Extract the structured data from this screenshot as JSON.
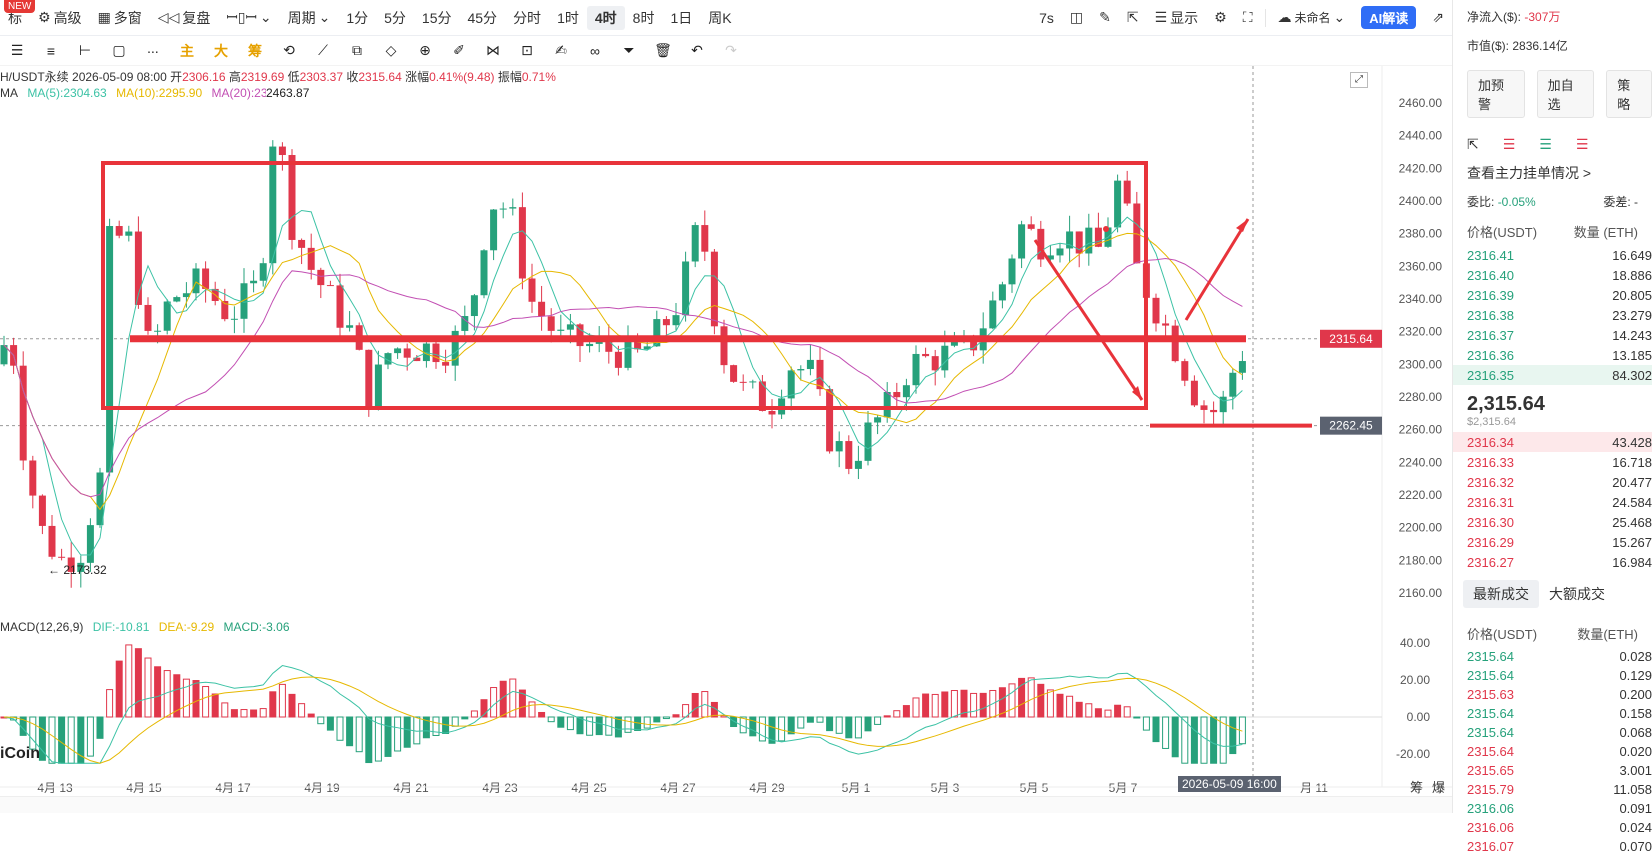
{
  "topbar": {
    "new_badge": "NEW",
    "items": [
      "标",
      "高级",
      "多窗",
      "复盘",
      "",
      "周期"
    ],
    "periods": [
      "1分",
      "5分",
      "15分",
      "45分",
      "分时",
      "1时",
      "4时",
      "8时",
      "1日",
      "周K"
    ],
    "active_period": "4时",
    "refresh": "7s",
    "display_label": "显示",
    "unnamed": "未命名",
    "ai_label": "AI解读"
  },
  "toolbar2": {
    "tool_labels": [
      "主",
      "大",
      "筹"
    ]
  },
  "chart": {
    "info": {
      "pair": "H/USDT永续",
      "date": "2026-05-09 08:00",
      "open_label": "开",
      "open": "2306.16",
      "high_label": "高",
      "high": "2319.69",
      "low_label": "低",
      "low": "2303.37",
      "close_label": "收",
      "close": "2315.64",
      "change_label": "涨幅",
      "change": "0.41%(9.48)",
      "amp_label": "振幅",
      "amp": "0.71%"
    },
    "ma": {
      "label": "MA",
      "ma5": "MA(5):2304.63",
      "ma10": "MA(10):2295.90",
      "ma20": "MA(20):2326.05"
    },
    "high_marker": "2463.87",
    "low_marker": "← 2173.32",
    "macd": {
      "label": "MACD(12,26,9)",
      "dif": "DIF:-10.81",
      "dea": "DEA:-9.29",
      "macd": "MACD:-3.06"
    },
    "watermark": "iCoin",
    "price_axis": [
      "2460.00",
      "2440.00",
      "2420.00",
      "2400.00",
      "2380.00",
      "2360.00",
      "2340.00",
      "2320.00",
      "2300.00",
      "2280.00",
      "2260.00",
      "2240.00",
      "2220.00",
      "2200.00",
      "2180.00",
      "2160.00"
    ],
    "macd_axis": [
      "40.00",
      "20.00",
      "0.00",
      "-20.00"
    ],
    "current_price_tag": "2315.64",
    "support_tag": "2262.45",
    "date_axis": [
      "4月 13",
      "4月 15",
      "4月 17",
      "4月 19",
      "4月 21",
      "4月 23",
      "4月 25",
      "4月 27",
      "4月 29",
      "5月 1",
      "5月 3",
      "5月 5",
      "5月 7",
      "月 11"
    ],
    "crosshair_date": "2026-05-09 16:00",
    "bottom_icons": [
      "筹",
      "爆"
    ],
    "colors": {
      "up": "#26a17b",
      "down": "#e0374b",
      "annotation": "#e8333a",
      "ma5": "#3cc2a5",
      "ma10": "#e6b800",
      "ma20": "#c24fb3"
    }
  },
  "right_panel": {
    "net_inflow_label": "净流入($):",
    "net_inflow": "-307万",
    "mcap_label": "市值($):",
    "mcap": "2836.14亿",
    "buttons": [
      "加预警",
      "加自选",
      "策略"
    ],
    "depth_label": "查看主力挂单情况 >",
    "ratio_label": "委比:",
    "ratio": "-0.05%",
    "diff_label": "委差:",
    "diff": "-",
    "ob_header_price": "价格(USDT)",
    "ob_header_qty": "数量 (ETH)",
    "asks": [
      {
        "p": "2316.41",
        "q": "16.649"
      },
      {
        "p": "2316.40",
        "q": "18.886"
      },
      {
        "p": "2316.39",
        "q": "20.805"
      },
      {
        "p": "2316.38",
        "q": "23.279"
      },
      {
        "p": "2316.37",
        "q": "14.243"
      },
      {
        "p": "2316.36",
        "q": "13.185"
      },
      {
        "p": "2316.35",
        "q": "84.302"
      }
    ],
    "last_price": "2,315.64",
    "last_price_usd": "$2,315.64",
    "bids": [
      {
        "p": "2316.34",
        "q": "43.428"
      },
      {
        "p": "2316.33",
        "q": "16.718"
      },
      {
        "p": "2316.32",
        "q": "20.477"
      },
      {
        "p": "2316.31",
        "q": "24.584"
      },
      {
        "p": "2316.30",
        "q": "25.468"
      },
      {
        "p": "2316.29",
        "q": "15.267"
      },
      {
        "p": "2316.27",
        "q": "16.984"
      }
    ],
    "tabs": [
      "最新成交",
      "大额成交"
    ],
    "trades_header_price": "价格(USDT)",
    "trades_header_qty": "数量(ETH)",
    "trades": [
      {
        "p": "2315.64",
        "q": "0.028",
        "s": "g"
      },
      {
        "p": "2315.64",
        "q": "0.129",
        "s": "g"
      },
      {
        "p": "2315.63",
        "q": "0.200",
        "s": "r"
      },
      {
        "p": "2315.64",
        "q": "0.158",
        "s": "g"
      },
      {
        "p": "2315.64",
        "q": "0.068",
        "s": "g"
      },
      {
        "p": "2315.64",
        "q": "0.020",
        "s": "r"
      },
      {
        "p": "2315.65",
        "q": "3.001",
        "s": "r"
      },
      {
        "p": "2315.79",
        "q": "11.058",
        "s": "r"
      },
      {
        "p": "2316.06",
        "q": "0.091",
        "s": "g"
      },
      {
        "p": "2316.06",
        "q": "0.024",
        "s": "r"
      },
      {
        "p": "2316.07",
        "q": "0.070",
        "s": "r"
      }
    ]
  }
}
